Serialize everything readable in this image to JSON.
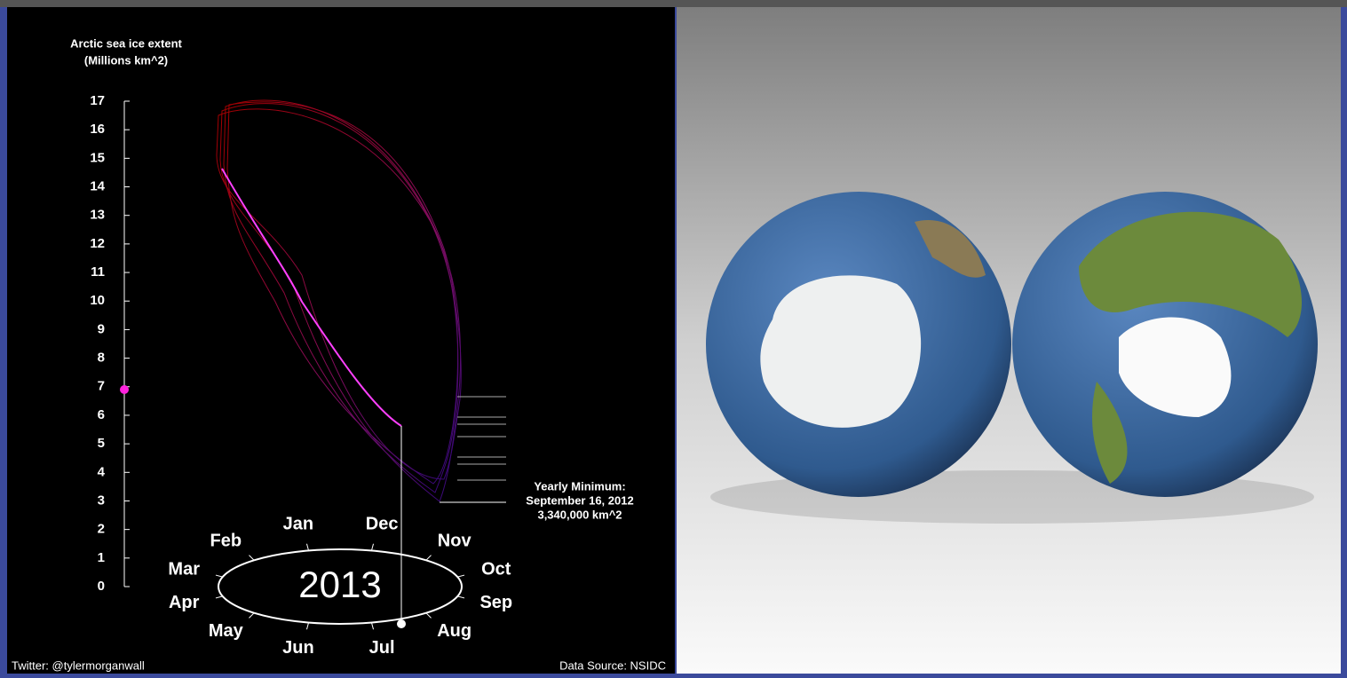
{
  "chart_data": {
    "type": "line",
    "axis_title": [
      "Arctic sea ice extent",
      "(Millions km^2)"
    ],
    "ylim": [
      0,
      17
    ],
    "yticks": [
      0,
      1,
      2,
      3,
      4,
      5,
      6,
      7,
      8,
      9,
      10,
      11,
      12,
      13,
      14,
      15,
      16,
      17
    ],
    "marker_value": 6.9,
    "marker_color": "#ff22dd",
    "months": [
      "Jan",
      "Feb",
      "Mar",
      "Apr",
      "May",
      "Jun",
      "Jul",
      "Aug",
      "Sep",
      "Oct",
      "Nov",
      "Dec"
    ],
    "year": "2013",
    "annotation": [
      "Yearly Minimum:",
      "September 16, 2012",
      "3,340,000 km^2"
    ],
    "credit": "Twitter: @tylermorganwall",
    "source": "Data Source: NSIDC"
  }
}
